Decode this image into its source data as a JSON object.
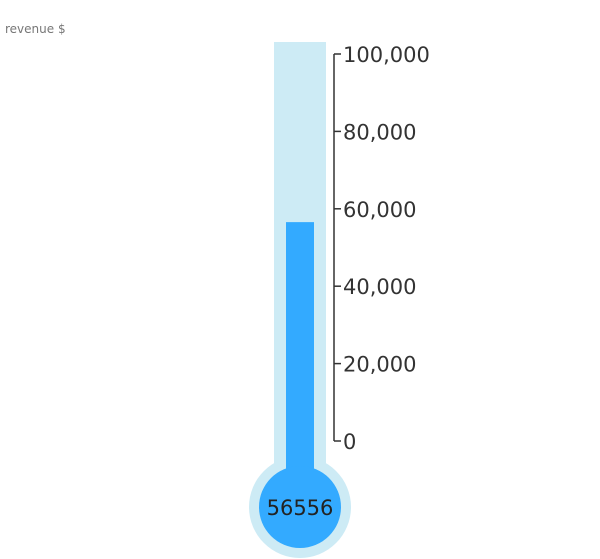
{
  "visual": {
    "title": "revenue $"
  },
  "chart_data": {
    "type": "thermometer",
    "title": "revenue $",
    "value": 56556,
    "value_label": "56556",
    "ylim": [
      0,
      100000
    ],
    "ticks": [
      0,
      20000,
      40000,
      60000,
      80000,
      100000
    ],
    "tick_labels": [
      "0",
      "20,000",
      "40,000",
      "60,000",
      "80,000",
      "100,000"
    ],
    "colors": {
      "tube": "#cdebf5",
      "fill": "#33aaff",
      "axis": "#333333",
      "text": "#333333"
    }
  }
}
